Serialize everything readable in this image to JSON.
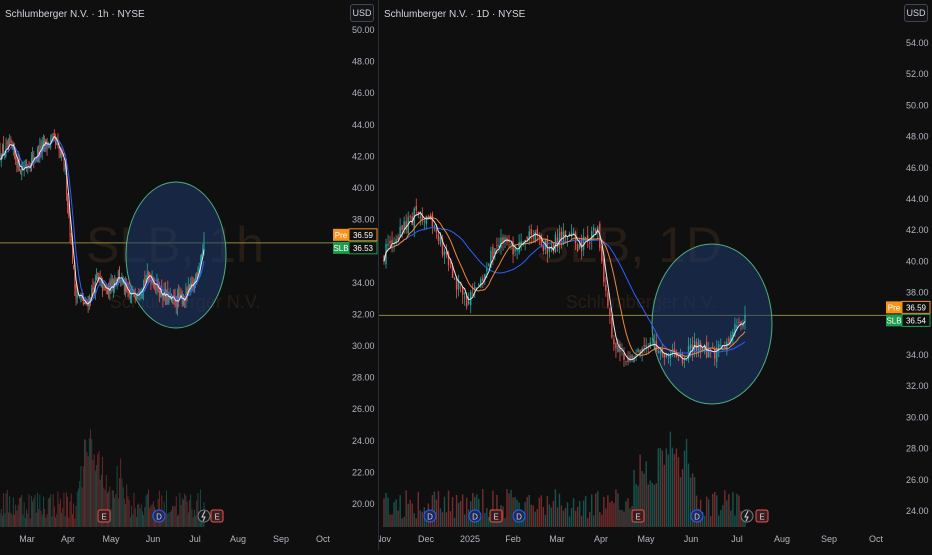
{
  "left_chart": {
    "title": "Schlumberger N.V. · 1h · NYSE",
    "currency_button": "USD",
    "watermark_symbol": "SLB, 1h",
    "watermark_name": "Schlumberger N.V.",
    "price_ticks": [
      "50.00",
      "48.00",
      "46.00",
      "44.00",
      "42.00",
      "40.00",
      "38.00",
      "36.00",
      "34.00",
      "32.00",
      "30.00",
      "28.00",
      "26.00",
      "24.00",
      "22.00",
      "20.00"
    ],
    "time_ticks": [
      "Mar",
      "Apr",
      "May",
      "Jun",
      "Jul",
      "Aug",
      "Sep",
      "Oct"
    ],
    "pre_label": "Pre",
    "pre_price": "36.59",
    "last_label": "SLB",
    "last_price": "36.53",
    "event_markers": [
      "E",
      "D",
      "E"
    ]
  },
  "right_chart": {
    "title": "Schlumberger N.V. · 1D · NYSE",
    "currency_button": "USD",
    "watermark_symbol": "SLB, 1D",
    "watermark_name": "Schlumberger N.V.",
    "price_ticks": [
      "54.00",
      "52.00",
      "50.00",
      "48.00",
      "46.00",
      "44.00",
      "42.00",
      "40.00",
      "38.00",
      "36.00",
      "34.00",
      "32.00",
      "30.00",
      "28.00",
      "26.00",
      "24.00"
    ],
    "time_ticks": [
      "Nov",
      "Dec",
      "2025",
      "Feb",
      "Mar",
      "Apr",
      "May",
      "Jun",
      "Jul",
      "Aug",
      "Sep",
      "Oct"
    ],
    "pre_label": "Pre",
    "pre_price": "36.59",
    "last_label": "SLB",
    "last_price": "36.54",
    "event_markers": [
      "D",
      "D",
      "E",
      "D",
      "E",
      "D",
      "E"
    ]
  },
  "colors": {
    "background": "#0f0f10",
    "up_candle": "#26a69a",
    "down_candle": "#ef5350",
    "ma_white": "#e8e8e8",
    "ma_orange": "#f0883e",
    "ma_blue": "#2962ff",
    "price_line": "#8d8a3a",
    "highlight_circle_fill": "#1e3a6e",
    "highlight_circle_stroke": "#4caf7d",
    "pre_badge": "#f7931a",
    "last_badge": "#1e9c50"
  },
  "chart_data": [
    {
      "type": "candlestick",
      "timeframe": "1h",
      "x": [
        "Mar",
        "Apr",
        "May",
        "Jun",
        "Jul"
      ],
      "approx_close": [
        42.3,
        34.0,
        33.8,
        33.2,
        36.53
      ],
      "ylim": [
        19.0,
        51.0
      ],
      "last_price": 36.53
    },
    {
      "type": "candlestick",
      "timeframe": "1D",
      "x": [
        "Nov",
        "Dec",
        "2025",
        "Feb",
        "Mar",
        "Apr",
        "May",
        "Jun",
        "Jul"
      ],
      "approx_close": [
        40.5,
        42.5,
        38.0,
        41.0,
        41.5,
        34.0,
        34.5,
        33.6,
        36.54
      ],
      "ylim": [
        23.0,
        55.5
      ],
      "last_price": 36.54
    }
  ]
}
